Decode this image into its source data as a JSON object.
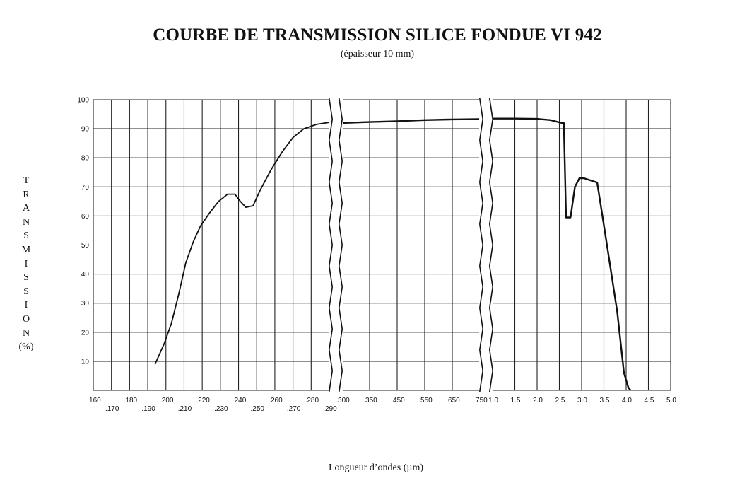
{
  "chart_data": {
    "type": "line",
    "title": "COURBE DE TRANSMISSION SILICE FONDUE VI 942",
    "subtitle": "(épaisseur 10 mm)",
    "ylabel": "TRANSMISSION",
    "ylabel_unit": "(%)",
    "xlabel": "Longueur d’ondes (µm)",
    "ylim": [
      0,
      100
    ],
    "yticks": [
      {
        "value": 100,
        "label": "100"
      },
      {
        "value": 90,
        "label": "90"
      },
      {
        "value": 80,
        "label": "80"
      },
      {
        "value": 70,
        "label": "70"
      },
      {
        "value": 60,
        "label": "60"
      },
      {
        "value": 50,
        "label": "50"
      },
      {
        "value": 40,
        "label": "40"
      },
      {
        "value": 30,
        "label": "30"
      },
      {
        "value": 20,
        "label": "20"
      },
      {
        "value": 10,
        "label": "10"
      }
    ],
    "grid": true,
    "x_axis_segments": [
      {
        "ticks": [
          {
            "value": 0.16,
            "label": ".160",
            "row": 0
          },
          {
            "value": 0.17,
            "label": ".170",
            "row": 1
          },
          {
            "value": 0.18,
            "label": ".180",
            "row": 0
          },
          {
            "value": 0.19,
            "label": ".190",
            "row": 1
          },
          {
            "value": 0.2,
            "label": ".200",
            "row": 0
          },
          {
            "value": 0.21,
            "label": ".210",
            "row": 1
          },
          {
            "value": 0.22,
            "label": ".220",
            "row": 0
          },
          {
            "value": 0.23,
            "label": ".230",
            "row": 1
          },
          {
            "value": 0.24,
            "label": ".240",
            "row": 0
          },
          {
            "value": 0.25,
            "label": ".250",
            "row": 1
          },
          {
            "value": 0.26,
            "label": ".260",
            "row": 0
          },
          {
            "value": 0.27,
            "label": ".270",
            "row": 1
          },
          {
            "value": 0.28,
            "label": ".280",
            "row": 0
          },
          {
            "value": 0.29,
            "label": ".290",
            "row": 1
          }
        ]
      },
      {
        "ticks": [
          {
            "value": 0.3,
            "label": ".300",
            "row": 0
          },
          {
            "value": 0.35,
            "label": ".350",
            "row": 0
          },
          {
            "value": 0.45,
            "label": ".450",
            "row": 0
          },
          {
            "value": 0.55,
            "label": ".550",
            "row": 0
          },
          {
            "value": 0.65,
            "label": ".650",
            "row": 0
          },
          {
            "value": 0.75,
            "label": ".750",
            "row": 0
          }
        ]
      },
      {
        "ticks": [
          {
            "value": 1.0,
            "label": "1.0",
            "row": 0
          },
          {
            "value": 1.5,
            "label": "1.5",
            "row": 0
          },
          {
            "value": 2.0,
            "label": "2.0",
            "row": 0
          },
          {
            "value": 2.5,
            "label": "2.5",
            "row": 0
          },
          {
            "value": 3.0,
            "label": "3.0",
            "row": 0
          },
          {
            "value": 3.5,
            "label": "3.5",
            "row": 0
          },
          {
            "value": 4.0,
            "label": "4.0",
            "row": 0
          },
          {
            "value": 4.5,
            "label": "4.5",
            "row": 0
          },
          {
            "value": 5.0,
            "label": "5.0",
            "row": 0
          }
        ]
      }
    ],
    "series": [
      {
        "segment": 0,
        "points": [
          [
            0.194,
            9
          ],
          [
            0.199,
            16
          ],
          [
            0.203,
            23
          ],
          [
            0.207,
            33
          ],
          [
            0.211,
            44
          ],
          [
            0.215,
            51
          ],
          [
            0.219,
            56.5
          ],
          [
            0.224,
            61
          ],
          [
            0.229,
            65
          ],
          [
            0.234,
            67.5
          ],
          [
            0.238,
            67.5
          ],
          [
            0.241,
            65
          ],
          [
            0.244,
            63
          ],
          [
            0.248,
            63.5
          ],
          [
            0.252,
            69
          ],
          [
            0.258,
            76
          ],
          [
            0.264,
            82
          ],
          [
            0.27,
            87
          ],
          [
            0.276,
            90
          ],
          [
            0.283,
            91.5
          ],
          [
            0.291,
            92.3
          ]
        ]
      },
      {
        "segment": 1,
        "points": [
          [
            0.3,
            92
          ],
          [
            0.35,
            92.3
          ],
          [
            0.45,
            92.6
          ],
          [
            0.55,
            93
          ],
          [
            0.65,
            93.2
          ],
          [
            0.75,
            93.3
          ]
        ]
      },
      {
        "segment": 2,
        "points": [
          [
            1.0,
            93.5
          ],
          [
            1.5,
            93.5
          ],
          [
            2.0,
            93.4
          ],
          [
            2.3,
            93
          ],
          [
            2.55,
            92
          ],
          [
            2.6,
            92
          ],
          [
            2.65,
            59.5
          ],
          [
            2.75,
            59.5
          ],
          [
            2.85,
            70
          ],
          [
            2.95,
            73
          ],
          [
            3.05,
            73
          ],
          [
            3.35,
            71.5
          ],
          [
            3.55,
            52
          ],
          [
            3.8,
            27
          ],
          [
            3.95,
            6
          ],
          [
            4.05,
            1
          ],
          [
            4.1,
            0
          ]
        ]
      }
    ]
  }
}
